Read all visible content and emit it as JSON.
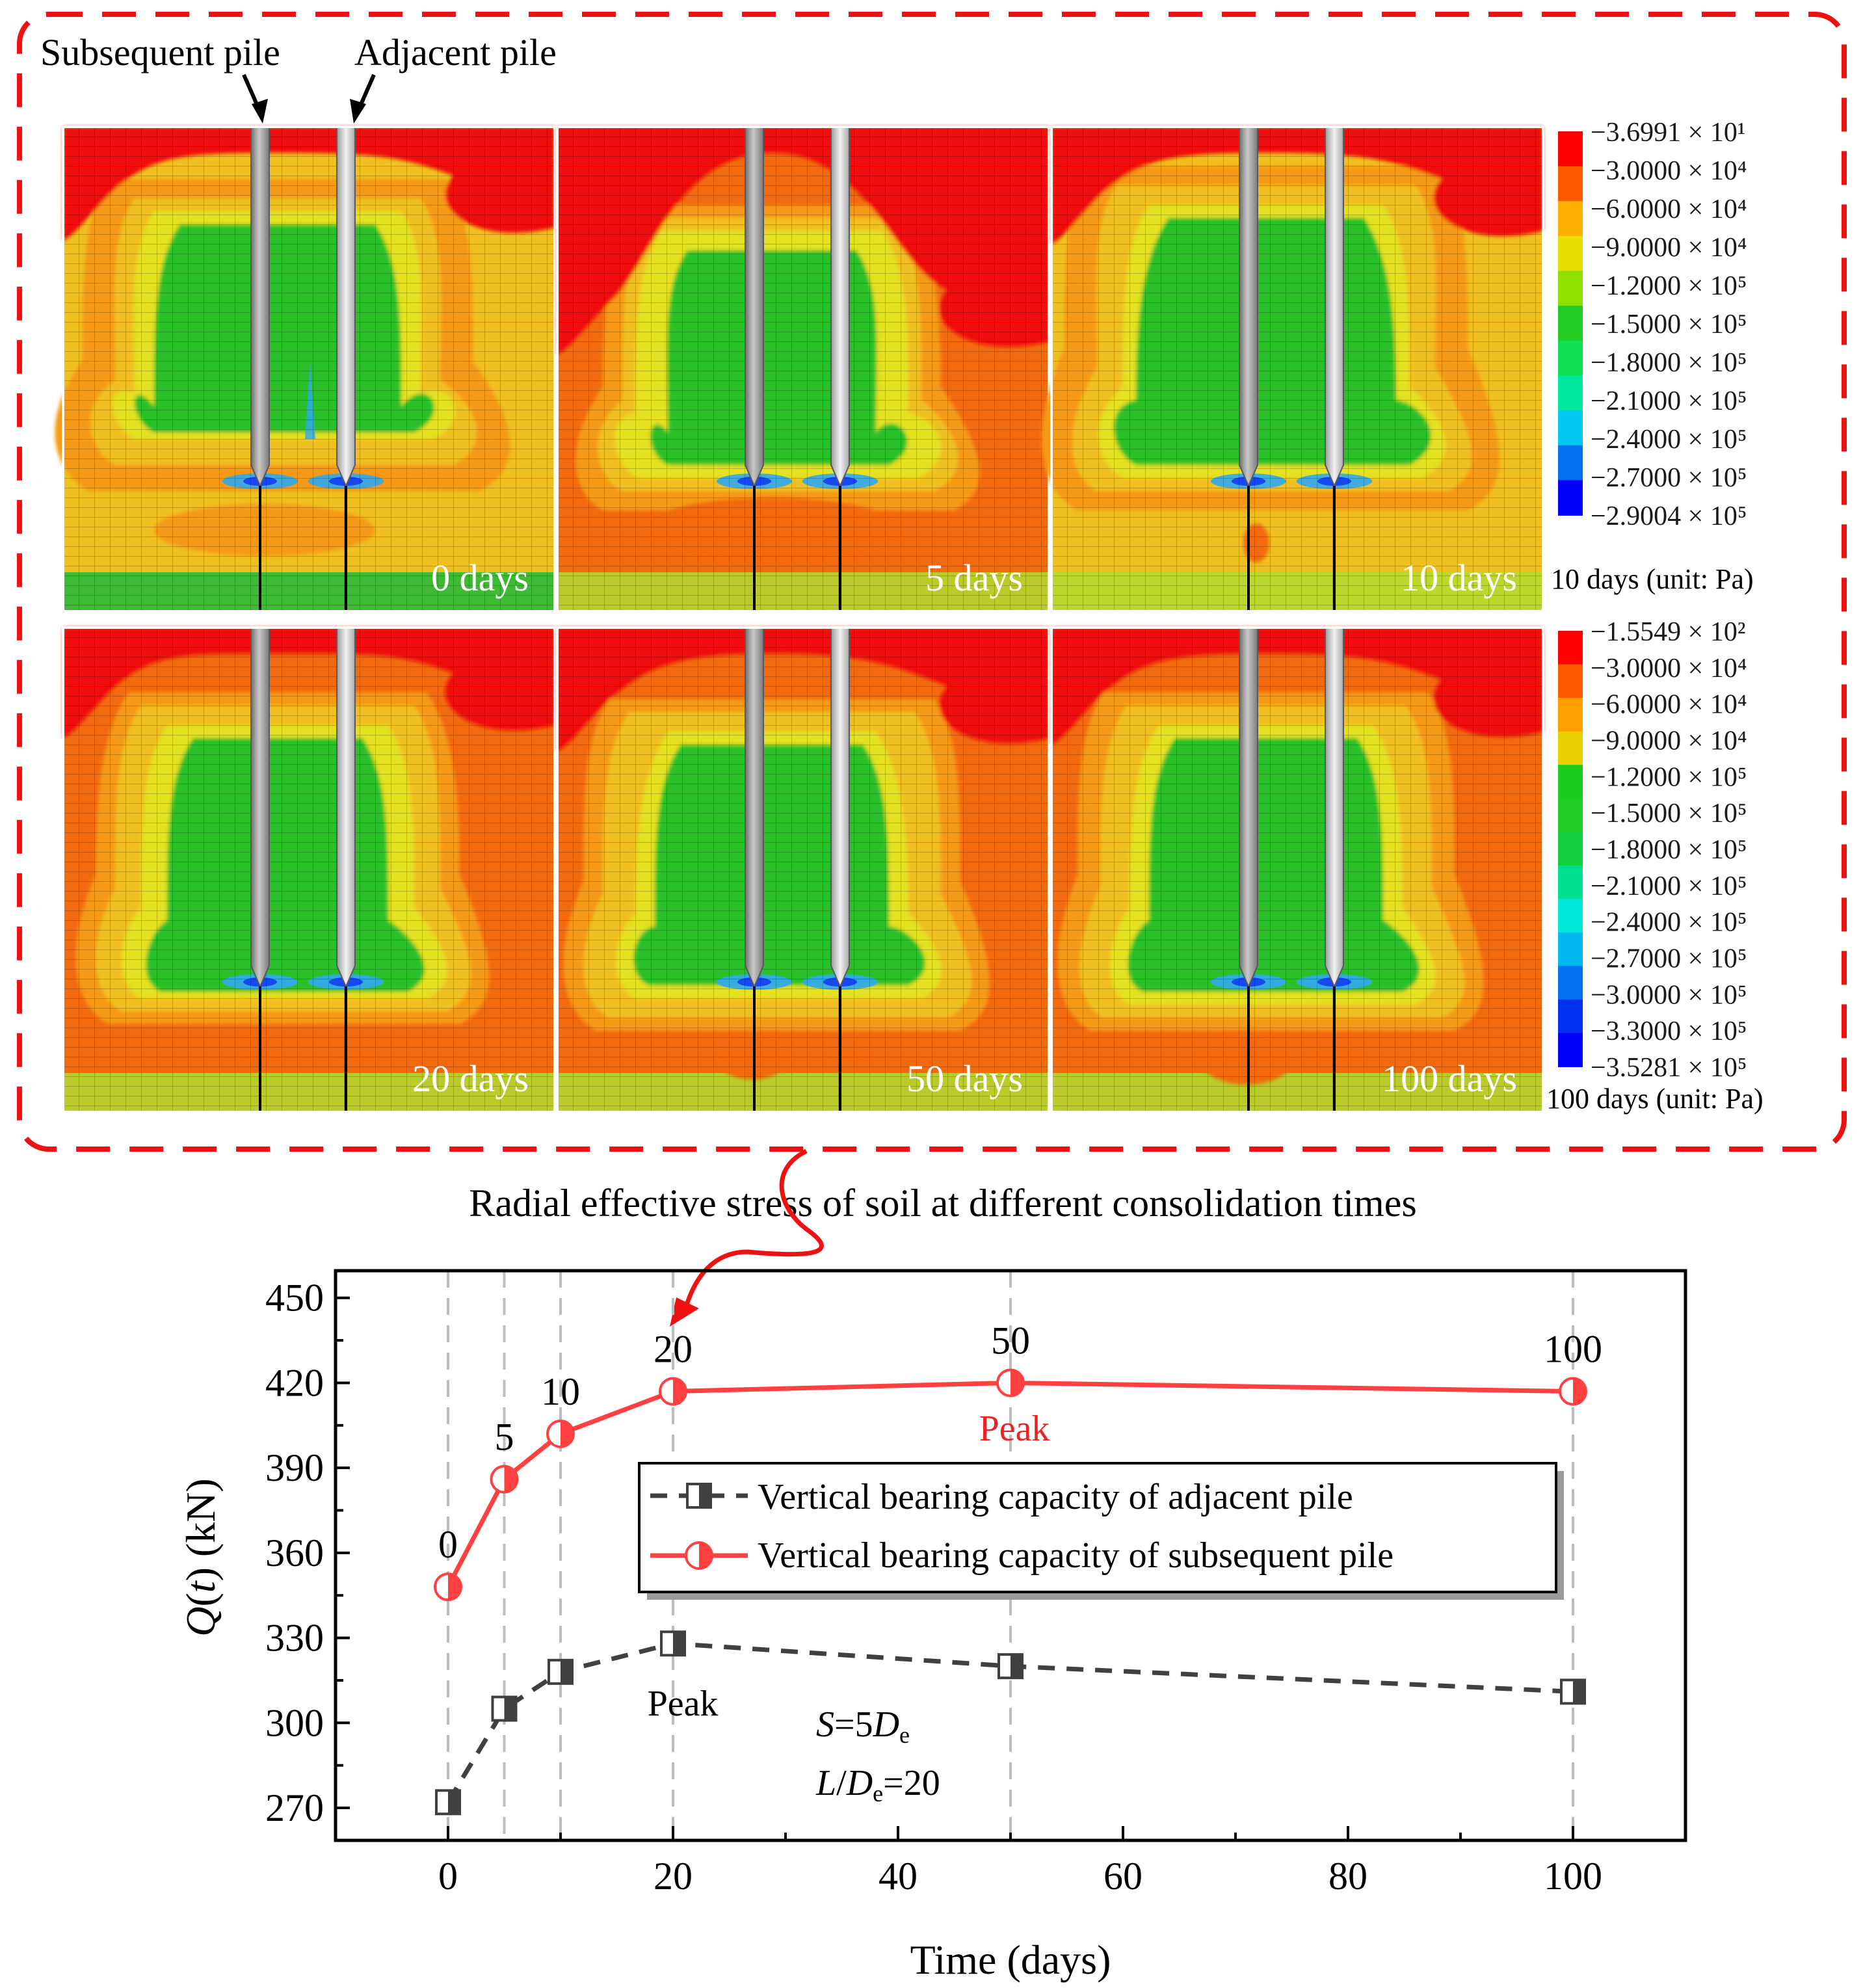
{
  "top": {
    "caption": "Radial effective stress of soil at different consolidation times",
    "label_subsequent": "Subsequent pile",
    "label_adjacent": "Adjacent pile",
    "panels": [
      {
        "label": "0 days",
        "style": 0
      },
      {
        "label": "5 days",
        "style": 1
      },
      {
        "label": "10 days",
        "style": 2
      },
      {
        "label": "20 days",
        "style": 3
      },
      {
        "label": "50 days",
        "style": 4
      },
      {
        "label": "100 days",
        "style": 5
      }
    ],
    "colorbar_upper": {
      "caption": "10 days (unit: Pa)",
      "labels": [
        "−3.6991 × 10¹",
        "−3.0000 × 10⁴",
        "−6.0000 × 10⁴",
        "−9.0000 × 10⁴",
        "−1.2000 × 10⁵",
        "−1.5000 × 10⁵",
        "−1.8000 × 10⁵",
        "−2.1000 × 10⁵",
        "−2.4000 × 10⁵",
        "−2.7000 × 10⁵",
        "−2.9004 × 10⁵"
      ],
      "colors": [
        "#ff0000",
        "#ff5a00",
        "#ffb000",
        "#e8e000",
        "#8ee000",
        "#22cc22",
        "#10e050",
        "#00e8a0",
        "#00c8f0",
        "#0070f0",
        "#0000ff"
      ]
    },
    "colorbar_lower": {
      "caption": "100 days (unit: Pa)",
      "labels": [
        "−1.5549 × 10²",
        "−3.0000 × 10⁴",
        "−6.0000 × 10⁴",
        "−9.0000 × 10⁴",
        "−1.2000 × 10⁵",
        "−1.5000 × 10⁵",
        "−1.8000 × 10⁵",
        "−2.1000 × 10⁵",
        "−2.4000 × 10⁵",
        "−2.7000 × 10⁵",
        "−3.0000 × 10⁵",
        "−3.3000 × 10⁵",
        "−3.5281 × 10⁵"
      ],
      "colors": [
        "#ff0000",
        "#ff5a00",
        "#ffa000",
        "#e8d000",
        "#1ccc1c",
        "#22cc22",
        "#10d040",
        "#00e090",
        "#00e8d8",
        "#00b8f0",
        "#0070f0",
        "#0030f0",
        "#0000ff"
      ]
    }
  },
  "chart_data": {
    "type": "line",
    "title": "",
    "xlabel": "Time (days)",
    "ylabel": "Q(t) (kN)",
    "xlim": [
      -10,
      110
    ],
    "ylim": [
      260,
      460
    ],
    "xticks": [
      0,
      20,
      40,
      60,
      80,
      100
    ],
    "yticks": [
      270,
      300,
      330,
      360,
      390,
      420,
      450
    ],
    "vlines": [
      0,
      5,
      10,
      20,
      50,
      100
    ],
    "series": [
      {
        "name": "Vertical bearing capacity of adjacent pile",
        "color": "#404040",
        "marker": "half-square",
        "x": [
          0,
          5,
          10,
          20,
          50,
          100
        ],
        "y": [
          272,
          305,
          318,
          328,
          320,
          311
        ]
      },
      {
        "name": "Vertical bearing capacity of subsequent pile",
        "color": "#ff4040",
        "marker": "half-circle",
        "x": [
          0,
          5,
          10,
          20,
          50,
          100
        ],
        "y": [
          348,
          386,
          402,
          417,
          420,
          417
        ]
      }
    ],
    "point_labels": [
      "0",
      "5",
      "10",
      "20",
      "50",
      "100"
    ],
    "annotations": {
      "peak_subsequent": "Peak",
      "peak_adjacent": "Peak",
      "spacing_pre": "S",
      "spacing_mid": "=5",
      "spacing_var": "D",
      "spacing_sub": "e",
      "ratio_pre": "L",
      "ratio_slash": "/",
      "ratio_var": "D",
      "ratio_sub": "e",
      "ratio_val": "=20"
    }
  }
}
